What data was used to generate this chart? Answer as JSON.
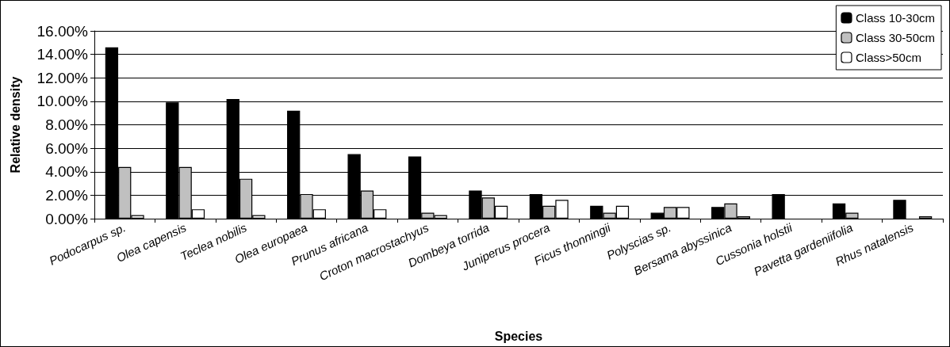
{
  "chart_data": {
    "type": "bar",
    "xlabel": "Species",
    "ylabel": "Relative density",
    "categories": [
      "Podocarpus sp.",
      "Olea capensis",
      "Teclea nobilis",
      "Olea europaea",
      "Prunus africana",
      "Croton macrostachyus",
      "Dombeya torrida",
      "Juniperus procera",
      "Ficus thonningii",
      "Polyscias sp.",
      "Bersama abyssinica",
      "Cussonia holstii",
      "Pavetta gardeniifolia",
      "Rhus natalensis"
    ],
    "series": [
      {
        "name": "Class 10-30cm",
        "color": "#000000",
        "values": [
          14.6,
          9.9,
          10.2,
          9.2,
          5.5,
          5.3,
          2.4,
          2.1,
          1.1,
          0.5,
          1.0,
          2.1,
          1.3,
          1.6
        ]
      },
      {
        "name": "Class 30-50cm",
        "color": "#c0c0c0",
        "values": [
          4.4,
          4.4,
          3.4,
          2.1,
          2.4,
          0.5,
          1.8,
          1.1,
          0.5,
          1.0,
          1.3,
          null,
          0.5,
          null
        ]
      },
      {
        "name": "Class>50cm",
        "color": "#ffffff",
        "values": [
          0.3,
          0.8,
          0.3,
          0.8,
          0.8,
          0.3,
          1.1,
          1.6,
          1.1,
          1.0,
          0.2,
          null,
          null,
          0.2
        ]
      }
    ],
    "ylim": [
      0,
      16
    ],
    "yticks": [
      {
        "value": 0,
        "label": "0.00%"
      },
      {
        "value": 2,
        "label": "2.00%"
      },
      {
        "value": 4,
        "label": "4.00%"
      },
      {
        "value": 6,
        "label": "6.00%"
      },
      {
        "value": 8,
        "label": "8.00%"
      },
      {
        "value": 10,
        "label": "10.00%"
      },
      {
        "value": 12,
        "label": "12.00%"
      },
      {
        "value": 14,
        "label": "14.00%"
      },
      {
        "value": 16,
        "label": "16.00%"
      }
    ],
    "grid": "y",
    "legend": "top right"
  }
}
